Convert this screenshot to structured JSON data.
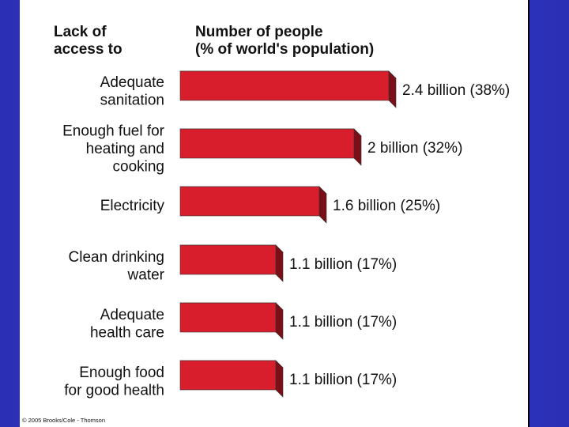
{
  "colors": {
    "bar_front": "#d81e2c",
    "bar_top": "#e8828a",
    "bar_side": "#7a0f18",
    "background": "#2f35c8"
  },
  "chart_data": {
    "type": "bar",
    "orientation": "horizontal",
    "category_header": [
      "Lack of",
      "access to"
    ],
    "value_header": [
      "Number of people",
      "(% of world's population)"
    ],
    "categories": [
      [
        "Adequate",
        "sanitation"
      ],
      [
        "Enough fuel for",
        "heating and",
        "cooking"
      ],
      [
        "Electricity"
      ],
      [
        "Clean drinking",
        "water"
      ],
      [
        "Adequate",
        "health care"
      ],
      [
        "Enough food",
        "for good health"
      ]
    ],
    "values": [
      2.4,
      2.0,
      1.6,
      1.1,
      1.1,
      1.1
    ],
    "percent": [
      38,
      32,
      25,
      17,
      17,
      17
    ],
    "value_labels": [
      "2.4 billion (38%)",
      "2 billion (32%)",
      "1.6 billion (25%)",
      "1.1 billion (17%)",
      "1.1 billion (17%)",
      "1.1 billion (17%)"
    ],
    "unit": "billion"
  },
  "footer": {
    "copyright": "© 2005 Brooks/Cole - Thomson"
  }
}
